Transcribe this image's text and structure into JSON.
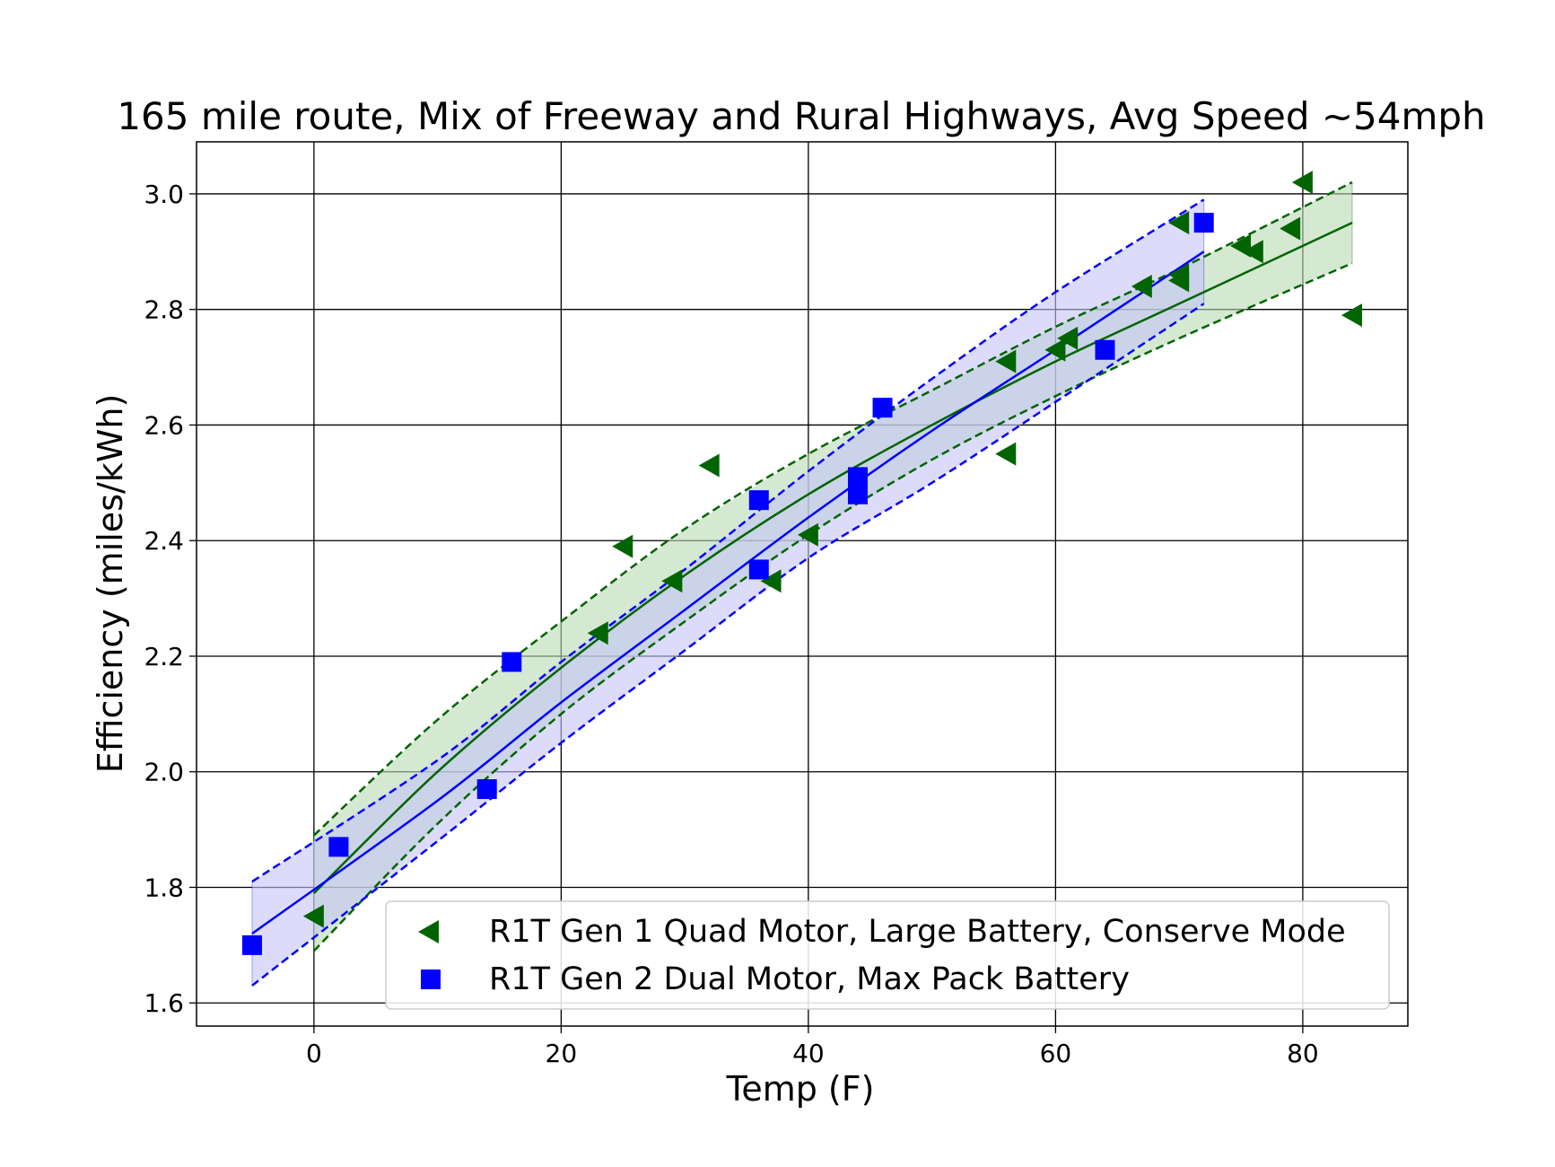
{
  "chart_data": {
    "type": "scatter",
    "title": "165 mile route, Mix of Freeway and Rural Highways, Avg Speed ~54mph",
    "xlabel": "Temp (F)",
    "ylabel": "Efficiency (miles/kWh)",
    "xlim": [
      -9.5,
      88.5
    ],
    "ylim": [
      1.56,
      3.09
    ],
    "xticks": [
      0,
      20,
      40,
      60,
      80
    ],
    "yticks": [
      1.6,
      1.8,
      2.0,
      2.2,
      2.4,
      2.6,
      2.8,
      3.0
    ],
    "xtick_labels": [
      "0",
      "20",
      "40",
      "60",
      "80"
    ],
    "ytick_labels": [
      "1.6",
      "1.8",
      "2.0",
      "2.2",
      "2.4",
      "2.6",
      "2.8",
      "3.0"
    ],
    "grid": true,
    "legend_position": "lower-right",
    "series": [
      {
        "name": "R1T Gen 1 Quad Motor, Large Battery, Conserve Mode",
        "marker": "triangle-left",
        "color": "#006400",
        "band_color": "#b9d9b3",
        "points": [
          [
            0,
            1.75
          ],
          [
            23,
            2.24
          ],
          [
            25,
            2.39
          ],
          [
            29,
            2.33
          ],
          [
            32,
            2.53
          ],
          [
            37,
            2.33
          ],
          [
            40,
            2.41
          ],
          [
            56,
            2.55
          ],
          [
            56,
            2.71
          ],
          [
            60,
            2.73
          ],
          [
            61,
            2.75
          ],
          [
            67,
            2.84
          ],
          [
            70,
            2.85
          ],
          [
            70,
            2.86
          ],
          [
            70,
            2.95
          ],
          [
            75,
            2.91
          ],
          [
            76,
            2.9
          ],
          [
            79,
            2.94
          ],
          [
            80,
            3.02
          ],
          [
            84,
            2.79
          ]
        ],
        "fit": {
          "x": [
            0,
            10,
            20,
            30,
            40,
            50,
            60,
            70,
            84
          ],
          "y": [
            1.79,
            2.0,
            2.18,
            2.34,
            2.48,
            2.6,
            2.71,
            2.81,
            2.95
          ],
          "upper": [
            1.89,
            2.09,
            2.26,
            2.42,
            2.55,
            2.66,
            2.77,
            2.87,
            3.02
          ],
          "lower": [
            1.69,
            1.91,
            2.1,
            2.26,
            2.41,
            2.54,
            2.65,
            2.75,
            2.88
          ]
        }
      },
      {
        "name": "R1T Gen 2 Dual Motor, Max Pack Battery",
        "marker": "square",
        "color": "#0000ff",
        "band_color": "#c4c4f6",
        "points": [
          [
            -5,
            1.7
          ],
          [
            2,
            1.87
          ],
          [
            14,
            1.97
          ],
          [
            16,
            2.19
          ],
          [
            36,
            2.47
          ],
          [
            36,
            2.35
          ],
          [
            44,
            2.51
          ],
          [
            44,
            2.48
          ],
          [
            46,
            2.63
          ],
          [
            64,
            2.73
          ],
          [
            72,
            2.95
          ]
        ],
        "fit": {
          "x": [
            -5,
            10,
            20,
            30,
            40,
            50,
            60,
            72
          ],
          "y": [
            1.72,
            1.95,
            2.12,
            2.28,
            2.44,
            2.59,
            2.73,
            2.9
          ],
          "upper": [
            1.81,
            2.02,
            2.19,
            2.35,
            2.52,
            2.68,
            2.83,
            2.99
          ],
          "lower": [
            1.63,
            1.88,
            2.05,
            2.21,
            2.37,
            2.5,
            2.64,
            2.81
          ]
        }
      }
    ]
  }
}
